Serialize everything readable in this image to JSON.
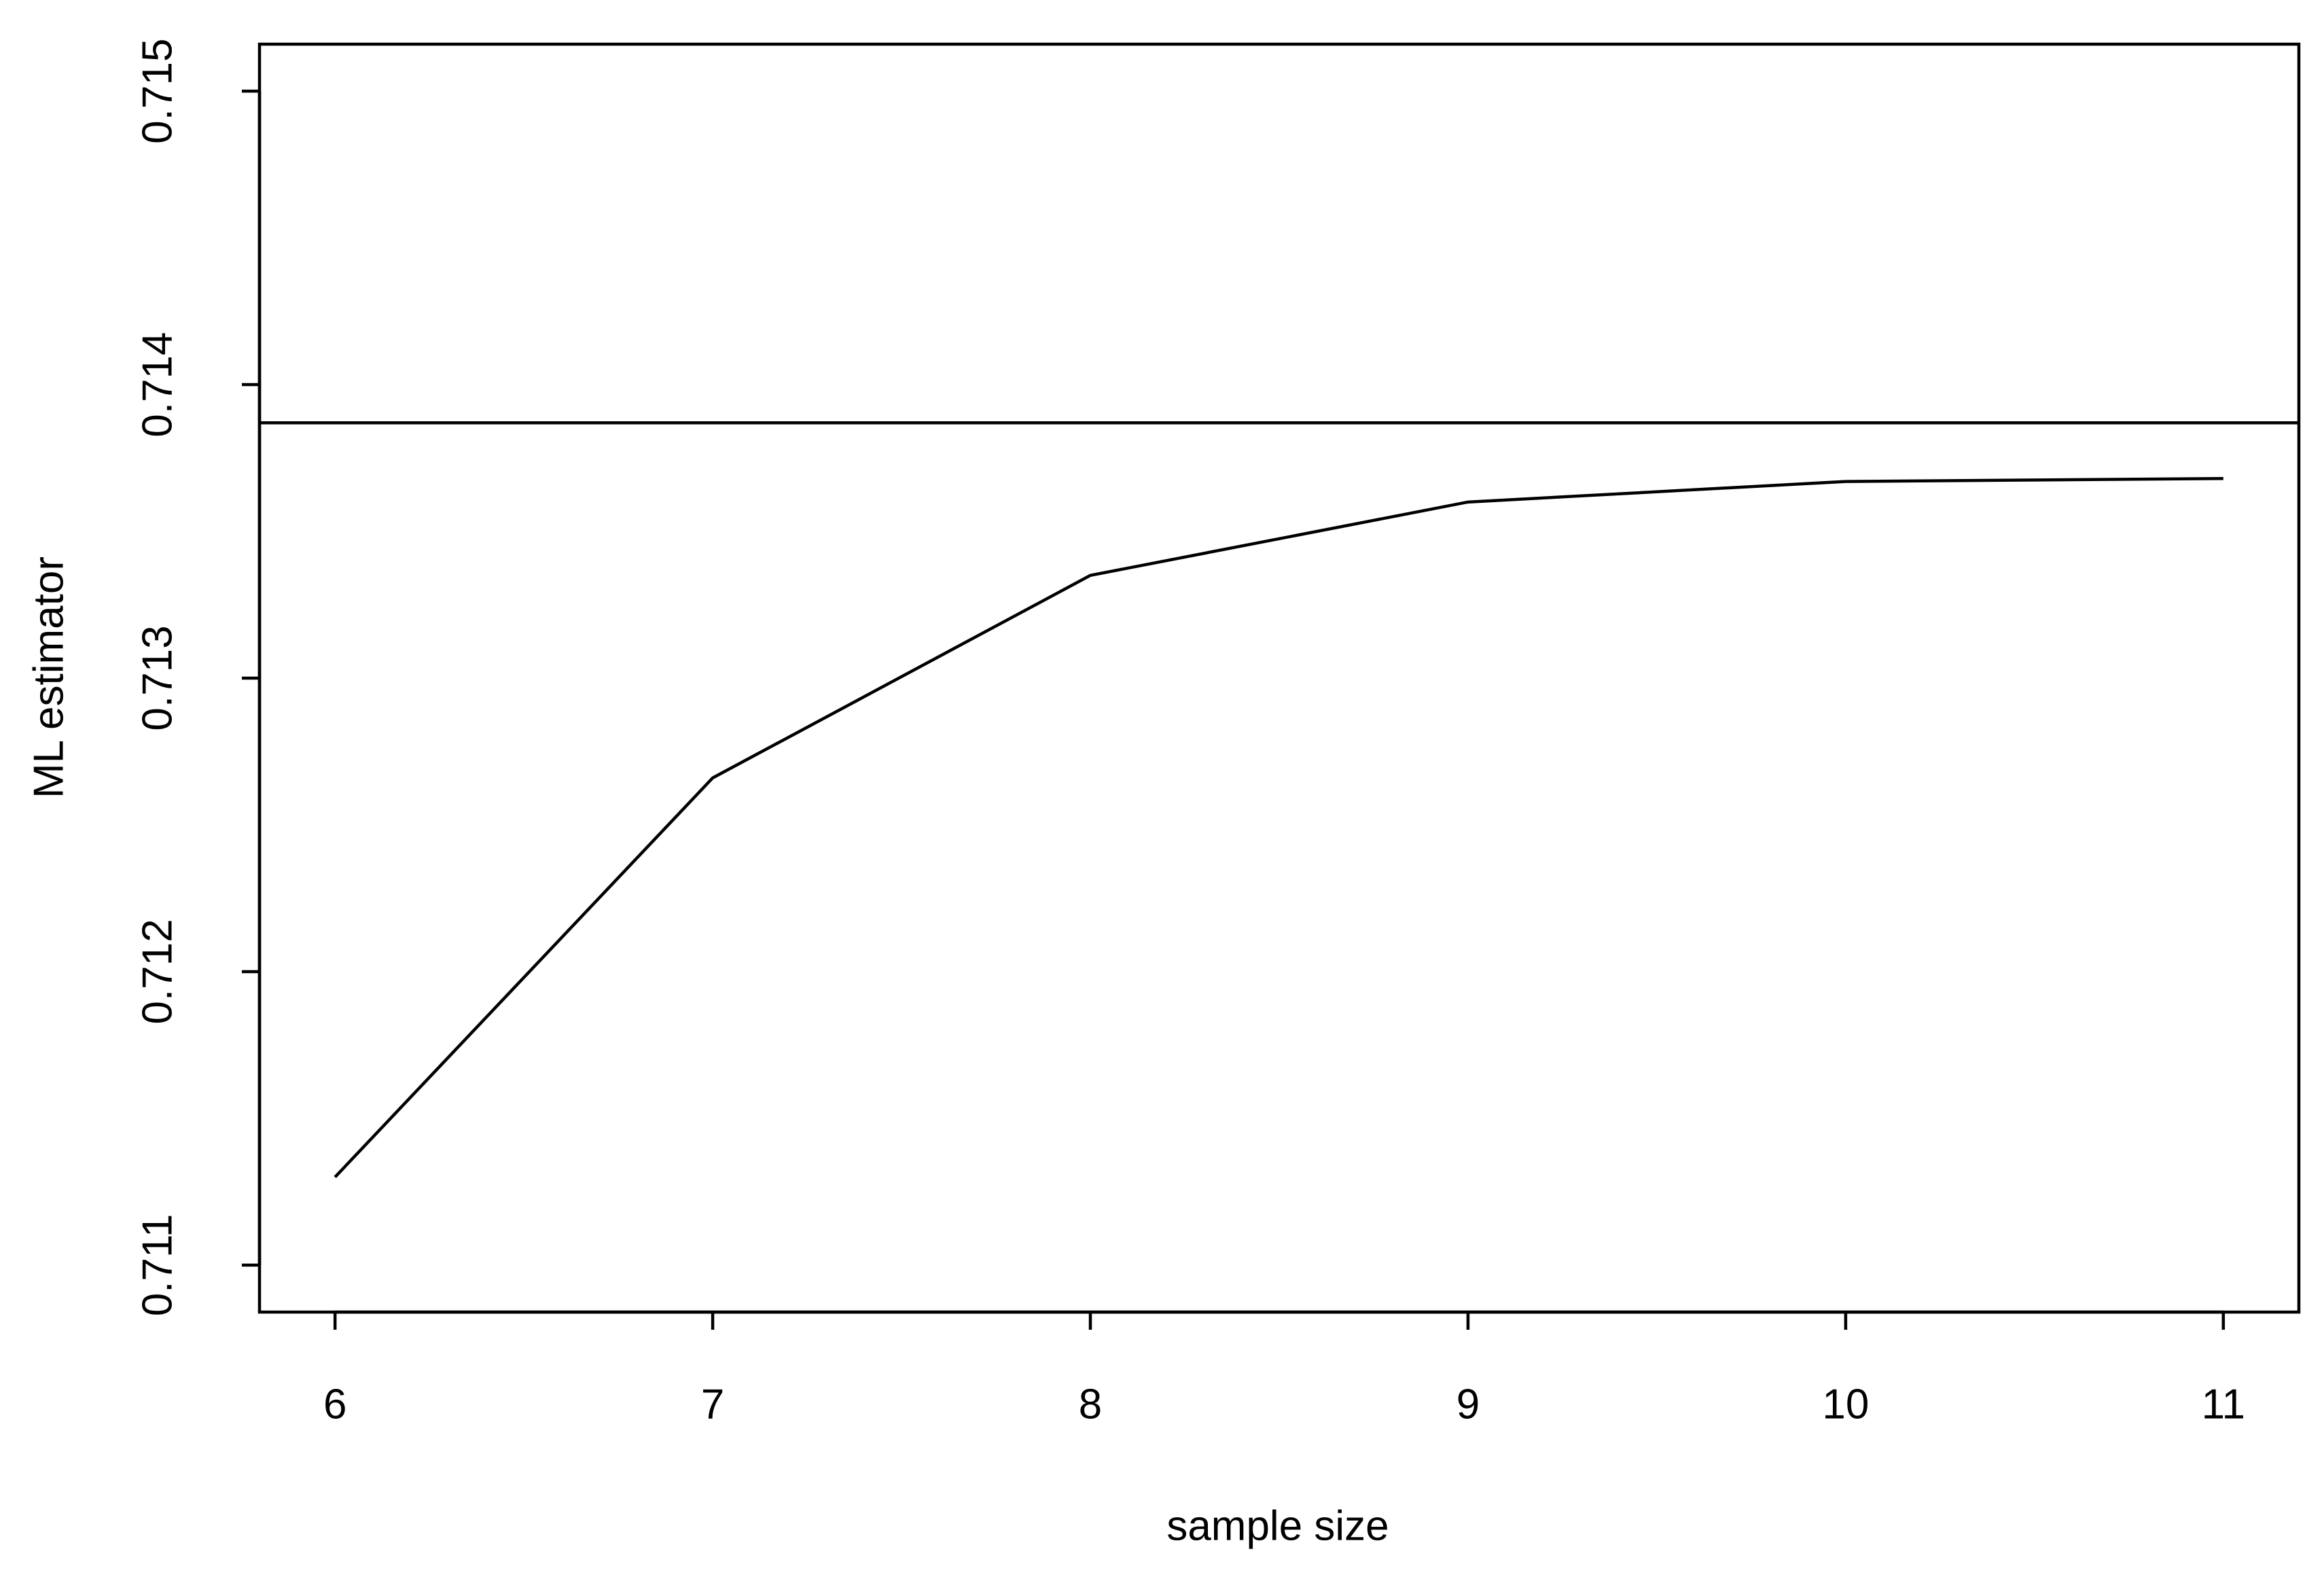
{
  "chart_data": {
    "type": "line",
    "x_label": "sample size",
    "y_label": "ML estimator",
    "x": [
      6,
      7,
      8,
      9,
      10,
      11
    ],
    "series": [
      {
        "color": "#000000",
        "values": [
          0.7113,
          0.71266,
          0.71335,
          0.7136,
          0.71367,
          0.71368
        ]
      }
    ],
    "hline": 0.71387,
    "xlim": [
      5.8,
      11.2
    ],
    "xticks": [
      6,
      7,
      8,
      9,
      10,
      11
    ],
    "ylim": [
      0.71084,
      0.71516
    ],
    "yticks": [
      0.711,
      0.712,
      0.713,
      0.714,
      0.715
    ],
    "grid": false
  }
}
